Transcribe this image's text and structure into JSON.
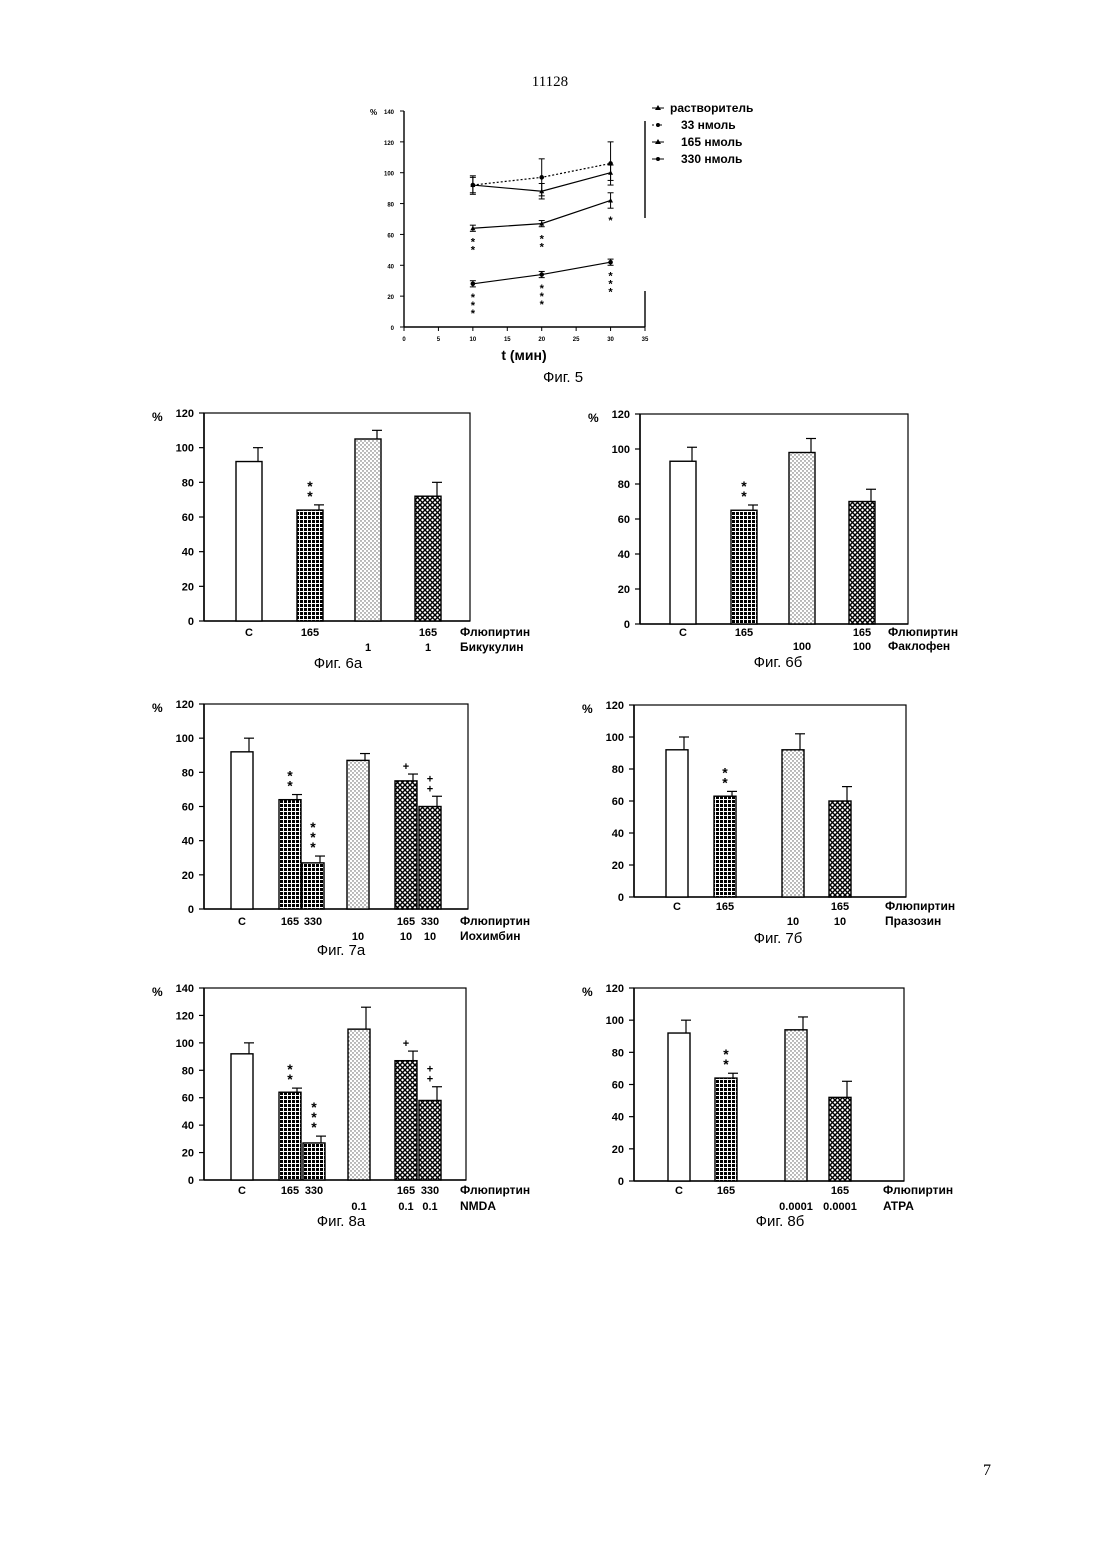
{
  "page": {
    "top_number": "11128",
    "bottom_number": "7"
  },
  "chart_data": [
    {
      "id": "fig5",
      "type": "line",
      "caption": "Фиг. 5",
      "ylabel": "%",
      "xlabel": "t (мин)",
      "ylim": [
        0,
        140
      ],
      "yticks": [
        0,
        20,
        40,
        60,
        80,
        100,
        120,
        140
      ],
      "ytick_labels": [
        "0",
        "20",
        "40",
        "60",
        "80",
        "100",
        "120",
        "140"
      ],
      "xlim": [
        0,
        35
      ],
      "xticks": [
        0,
        5,
        10,
        15,
        20,
        25,
        30,
        35
      ],
      "xtick_labels": [
        "0",
        "5",
        "10",
        "15",
        "20",
        "25",
        "30",
        "35"
      ],
      "legend_position": "top-right",
      "series": [
        {
          "name": "растворитель",
          "x": [
            10,
            20,
            30
          ],
          "y": [
            92,
            88,
            100
          ],
          "err": [
            5,
            5,
            5
          ],
          "dashed": false,
          "marker": "triangle"
        },
        {
          "name": "33 нмоль",
          "x": [
            10,
            20,
            30
          ],
          "y": [
            92,
            97,
            106
          ],
          "err": [
            6,
            12,
            14
          ],
          "dashed": true,
          "marker": "circle"
        },
        {
          "name": "165 нмоль",
          "x": [
            10,
            20,
            30
          ],
          "y": [
            64,
            67,
            82
          ],
          "err": [
            2,
            2,
            5
          ],
          "dashed": false,
          "marker": "triangle"
        },
        {
          "name": "330 нмоль",
          "x": [
            10,
            20,
            30
          ],
          "y": [
            28,
            34,
            42
          ],
          "err": [
            2,
            2,
            2
          ],
          "dashed": false,
          "marker": "circle"
        }
      ],
      "annotations": [
        {
          "x": 10,
          "y_from": 58,
          "text": "**"
        },
        {
          "x": 20,
          "y_from": 60,
          "text": "**"
        },
        {
          "x": 30,
          "y_from": 72,
          "text": "*"
        },
        {
          "x": 10,
          "y_from": 22,
          "text": "***"
        },
        {
          "x": 20,
          "y_from": 28,
          "text": "***"
        },
        {
          "x": 30,
          "y_from": 36,
          "text": "***"
        }
      ]
    },
    {
      "id": "fig6a",
      "type": "bar",
      "caption": "Фиг. 6а",
      "ylabel": "%",
      "ylim": [
        0,
        120
      ],
      "yticks": [
        0,
        20,
        40,
        60,
        80,
        100,
        120
      ],
      "ytick_labels": [
        "0",
        "20",
        "40",
        "60",
        "80",
        "100",
        "120"
      ],
      "row_labels": [
        "Флюпиртин",
        "Бикукулин"
      ],
      "bars": [
        {
          "row1": "С",
          "row2": "",
          "value": 92,
          "err": 8,
          "pattern": "white",
          "sig": ""
        },
        {
          "row1": "165",
          "row2": "",
          "value": 64,
          "err": 3,
          "pattern": "grid",
          "sig": "**"
        },
        {
          "row1": "",
          "row2": "1",
          "value": 105,
          "err": 5,
          "pattern": "dots",
          "sig": ""
        },
        {
          "row1": "165",
          "row2": "1",
          "value": 72,
          "err": 8,
          "pattern": "cross",
          "sig": ""
        }
      ]
    },
    {
      "id": "fig6b",
      "type": "bar",
      "caption": "Фиг. 6б",
      "ylabel": "%",
      "ylim": [
        0,
        120
      ],
      "yticks": [
        0,
        20,
        40,
        60,
        80,
        100,
        120
      ],
      "ytick_labels": [
        "0",
        "20",
        "40",
        "60",
        "80",
        "100",
        "120"
      ],
      "row_labels": [
        "Флюпиртин",
        "Факлофен"
      ],
      "bars": [
        {
          "row1": "С",
          "row2": "",
          "value": 93,
          "err": 8,
          "pattern": "white",
          "sig": ""
        },
        {
          "row1": "165",
          "row2": "",
          "value": 65,
          "err": 3,
          "pattern": "grid",
          "sig": "**"
        },
        {
          "row1": "",
          "row2": "100",
          "value": 98,
          "err": 8,
          "pattern": "dots",
          "sig": ""
        },
        {
          "row1": "165",
          "row2": "100",
          "value": 70,
          "err": 7,
          "pattern": "cross",
          "sig": ""
        }
      ]
    },
    {
      "id": "fig7a",
      "type": "bar",
      "caption": "Фиг. 7а",
      "ylabel": "%",
      "ylim": [
        0,
        120
      ],
      "yticks": [
        0,
        20,
        40,
        60,
        80,
        100,
        120
      ],
      "ytick_labels": [
        "0",
        "20",
        "40",
        "60",
        "80",
        "100",
        "120"
      ],
      "row_labels": [
        "Флюпиртин",
        "Иохимбин"
      ],
      "bars": [
        {
          "row1": "С",
          "row2": "",
          "value": 92,
          "err": 8,
          "pattern": "white",
          "sig": ""
        },
        {
          "row1": "165",
          "row2": "",
          "value": 64,
          "err": 3,
          "pattern": "grid",
          "sig": "**"
        },
        {
          "row1": "330",
          "row2": "",
          "value": 27,
          "err": 4,
          "pattern": "grid",
          "sig": "***"
        },
        {
          "row1": "",
          "row2": "10",
          "value": 87,
          "err": 4,
          "pattern": "dots",
          "sig": ""
        },
        {
          "row1": "165",
          "row2": "10",
          "value": 75,
          "err": 4,
          "pattern": "cross",
          "sig": "+"
        },
        {
          "row1": "330",
          "row2": "10",
          "value": 60,
          "err": 6,
          "pattern": "cross",
          "sig": "++"
        }
      ]
    },
    {
      "id": "fig7b",
      "type": "bar",
      "caption": "Фиг. 7б",
      "ylabel": "%",
      "ylim": [
        0,
        120
      ],
      "yticks": [
        0,
        20,
        40,
        60,
        80,
        100,
        120
      ],
      "ytick_labels": [
        "0",
        "20",
        "40",
        "60",
        "80",
        "100",
        "120"
      ],
      "row_labels": [
        "Флюпиртин",
        "Празозин"
      ],
      "bars": [
        {
          "row1": "С",
          "row2": "",
          "value": 92,
          "err": 8,
          "pattern": "white",
          "sig": ""
        },
        {
          "row1": "165",
          "row2": "",
          "value": 63,
          "err": 3,
          "pattern": "grid",
          "sig": "**"
        },
        {
          "row1": "",
          "row2": "10",
          "value": 92,
          "err": 10,
          "pattern": "dots",
          "sig": ""
        },
        {
          "row1": "165",
          "row2": "10",
          "value": 60,
          "err": 9,
          "pattern": "cross",
          "sig": ""
        }
      ]
    },
    {
      "id": "fig8a",
      "type": "bar",
      "caption": "Фиг. 8а",
      "ylabel": "%",
      "ylim": [
        0,
        140
      ],
      "yticks": [
        0,
        20,
        40,
        60,
        80,
        100,
        120,
        140
      ],
      "ytick_labels": [
        "0",
        "20",
        "40",
        "60",
        "80",
        "100",
        "120",
        "140"
      ],
      "row_labels": [
        "Флюпиртин",
        "NMDA"
      ],
      "bars": [
        {
          "row1": "С",
          "row2": "",
          "value": 92,
          "err": 8,
          "pattern": "white",
          "sig": ""
        },
        {
          "row1": "165",
          "row2": "",
          "value": 64,
          "err": 3,
          "pattern": "grid",
          "sig": "**"
        },
        {
          "row1": "330",
          "row2": "",
          "value": 27,
          "err": 5,
          "pattern": "grid",
          "sig": "***"
        },
        {
          "row1": "",
          "row2": "0.1",
          "value": 110,
          "err": 16,
          "pattern": "dots",
          "sig": ""
        },
        {
          "row1": "165",
          "row2": "0.1",
          "value": 87,
          "err": 7,
          "pattern": "cross",
          "sig": "+"
        },
        {
          "row1": "330",
          "row2": "0.1",
          "value": 58,
          "err": 10,
          "pattern": "cross",
          "sig": "++"
        }
      ]
    },
    {
      "id": "fig8b",
      "type": "bar",
      "caption": "Фиг. 8б",
      "ylabel": "%",
      "ylim": [
        0,
        120
      ],
      "yticks": [
        0,
        20,
        40,
        60,
        80,
        100,
        120
      ],
      "ytick_labels": [
        "0",
        "20",
        "40",
        "60",
        "80",
        "100",
        "120"
      ],
      "row_labels": [
        "Флюпиртин",
        "ATPA"
      ],
      "bars": [
        {
          "row1": "С",
          "row2": "",
          "value": 92,
          "err": 8,
          "pattern": "white",
          "sig": ""
        },
        {
          "row1": "165",
          "row2": "",
          "value": 64,
          "err": 3,
          "pattern": "grid",
          "sig": "**"
        },
        {
          "row1": "",
          "row2": "0.0001",
          "value": 94,
          "err": 8,
          "pattern": "dots",
          "sig": ""
        },
        {
          "row1": "165",
          "row2": "0.0001",
          "value": 52,
          "err": 10,
          "pattern": "cross",
          "sig": ""
        }
      ]
    }
  ]
}
